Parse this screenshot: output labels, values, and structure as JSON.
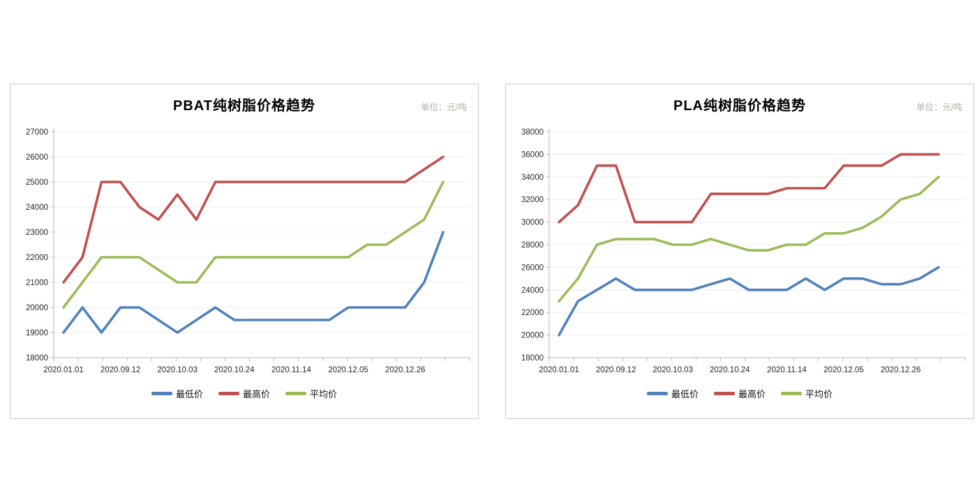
{
  "style": {
    "grid_color": "#ececec",
    "axis_color": "#b7b7b7",
    "tick_color": "#b7b7b7",
    "label_color": "#262626",
    "title_color": "#000000",
    "unit_color": "#b3aea1"
  },
  "chart_data": [
    {
      "type": "line",
      "title": "PBAT纯树脂价格趋势",
      "unit_label": "单位：元/吨",
      "n_points": 21,
      "x_tick_labels": [
        "2020.01.01",
        "2020.09.12",
        "2020.10.03",
        "2020.10.24",
        "2020.11.14",
        "2020.12.05",
        "2020.12.26"
      ],
      "label_interval": 3,
      "ylim": [
        18000,
        27000
      ],
      "ytick_step": 1000,
      "grid": true,
      "legend_position": "bottom",
      "series": [
        {
          "key": "min",
          "name": "最低价",
          "color": "#4F81BD",
          "values": [
            19000,
            20000,
            19000,
            20000,
            20000,
            19500,
            19000,
            19500,
            20000,
            19500,
            19500,
            19500,
            19500,
            19500,
            19500,
            20000,
            20000,
            20000,
            20000,
            21000,
            23000
          ]
        },
        {
          "key": "max",
          "name": "最高价",
          "color": "#C0504D",
          "values": [
            21000,
            22000,
            25000,
            25000,
            24000,
            23500,
            24500,
            23500,
            25000,
            25000,
            25000,
            25000,
            25000,
            25000,
            25000,
            25000,
            25000,
            25000,
            25000,
            25500,
            26000
          ]
        },
        {
          "key": "avg",
          "name": "平均价",
          "color": "#9BBB59",
          "values": [
            20000,
            21000,
            22000,
            22000,
            22000,
            21500,
            21000,
            21000,
            22000,
            22000,
            22000,
            22000,
            22000,
            22000,
            22000,
            22000,
            22500,
            22500,
            23000,
            23500,
            25000
          ]
        }
      ]
    },
    {
      "type": "line",
      "title": "PLA纯树脂价格趋势",
      "unit_label": "单位：元/吨",
      "n_points": 21,
      "x_tick_labels": [
        "2020.01.01",
        "2020.09.12",
        "2020.10.03",
        "2020.10.24",
        "2020.11.14",
        "2020.12.05",
        "2020.12.26"
      ],
      "label_interval": 3,
      "ylim": [
        18000,
        38000
      ],
      "ytick_step": 2000,
      "grid": true,
      "legend_position": "bottom",
      "series": [
        {
          "key": "min",
          "name": "最低价",
          "color": "#4F81BD",
          "values": [
            20000,
            23000,
            24000,
            25000,
            24000,
            24000,
            24000,
            24000,
            24500,
            25000,
            24000,
            24000,
            24000,
            25000,
            24000,
            25000,
            25000,
            24500,
            24500,
            25000,
            26000
          ]
        },
        {
          "key": "max",
          "name": "最高价",
          "color": "#C0504D",
          "values": [
            30000,
            31500,
            35000,
            35000,
            30000,
            30000,
            30000,
            30000,
            32500,
            32500,
            32500,
            32500,
            33000,
            33000,
            33000,
            35000,
            35000,
            35000,
            36000,
            36000,
            36000
          ]
        },
        {
          "key": "avg",
          "name": "平均价",
          "color": "#9BBB59",
          "values": [
            23000,
            25000,
            28000,
            28500,
            28500,
            28500,
            28000,
            28000,
            28500,
            28000,
            27500,
            27500,
            28000,
            28000,
            29000,
            29000,
            29500,
            30500,
            32000,
            32500,
            34000
          ]
        }
      ]
    }
  ]
}
